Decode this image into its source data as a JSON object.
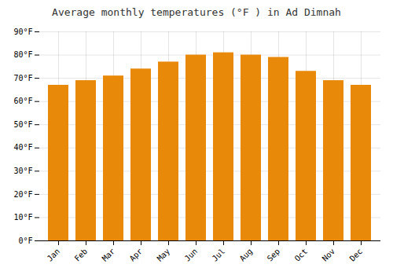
{
  "chart_data": {
    "type": "bar",
    "title": "Average monthly temperatures (°F ) in Ad Dimnah",
    "categories": [
      "Jan",
      "Feb",
      "Mar",
      "Apr",
      "May",
      "Jun",
      "Jul",
      "Aug",
      "Sep",
      "Oct",
      "Nov",
      "Dec"
    ],
    "values": [
      67,
      69,
      71,
      74,
      77,
      80,
      81,
      80,
      79,
      73,
      69,
      67
    ],
    "color": "#E8890A",
    "ylim": [
      0,
      90
    ],
    "yticks": [
      {
        "value": 0,
        "label": "0°F"
      },
      {
        "value": 10,
        "label": "10°F"
      },
      {
        "value": 20,
        "label": "20°F"
      },
      {
        "value": 30,
        "label": "30°F"
      },
      {
        "value": 40,
        "label": "40°F"
      },
      {
        "value": 50,
        "label": "50°F"
      },
      {
        "value": 60,
        "label": "60°F"
      },
      {
        "value": 70,
        "label": "70°F"
      },
      {
        "value": 80,
        "label": "80°F"
      },
      {
        "value": 90,
        "label": "90°F"
      }
    ],
    "grid": true
  }
}
